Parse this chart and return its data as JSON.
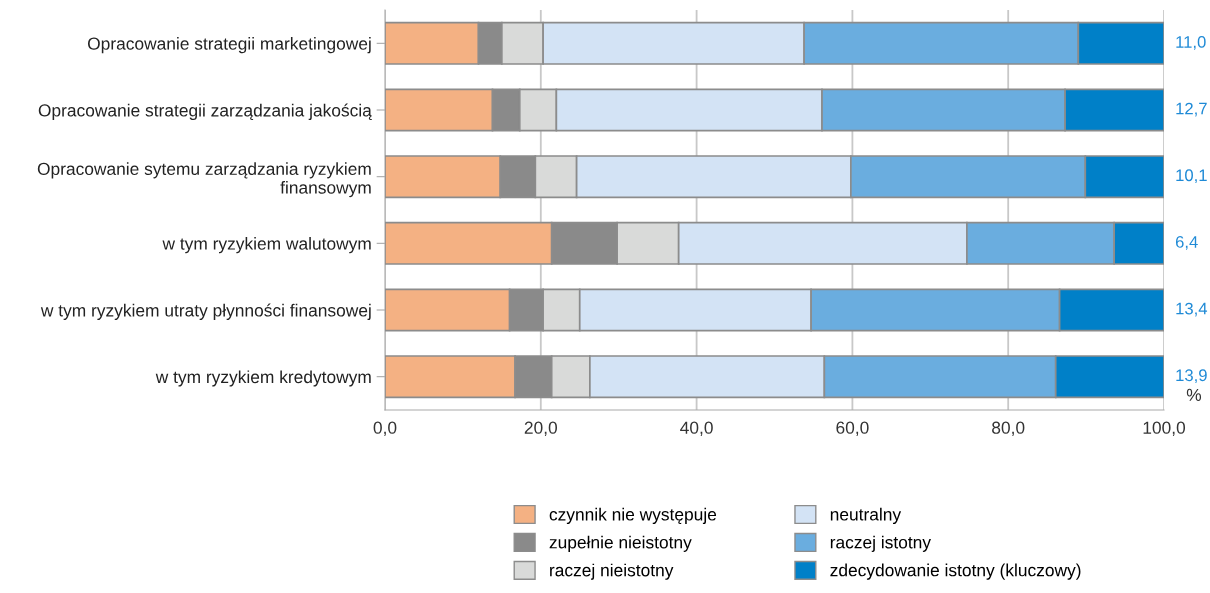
{
  "chart_data": {
    "type": "bar",
    "orientation": "horizontal",
    "stacked": true,
    "categories": [
      "Opracowanie strategii marketingowej",
      "Opracowanie strategii zarządzania jakością",
      "Opracowanie sytemu zarządzania ryzykiem finansowym",
      "w tym ryzykiem walutowym",
      "w tym ryzykiem utraty płynności finansowej",
      "w tym ryzykiem kredytowym"
    ],
    "series": [
      {
        "name": "czynnik nie występuje",
        "color": "#f4b183",
        "values": [
          12.0,
          13.8,
          14.8,
          21.4,
          16.0,
          16.7
        ]
      },
      {
        "name": "zupełnie nieistotny",
        "color": "#8a8a8a",
        "values": [
          3.0,
          3.5,
          4.5,
          8.4,
          4.3,
          4.7
        ]
      },
      {
        "name": "raczej nieistotny",
        "color": "#d9dad9",
        "values": [
          5.3,
          4.7,
          5.3,
          7.9,
          4.7,
          4.9
        ]
      },
      {
        "name": "neutralny",
        "color": "#d3e3f5",
        "values": [
          33.5,
          34.1,
          35.2,
          37.0,
          29.7,
          30.1
        ]
      },
      {
        "name": "raczej istotny",
        "color": "#6aaddf",
        "values": [
          35.2,
          31.2,
          30.1,
          18.9,
          31.9,
          29.7
        ]
      },
      {
        "name": "zdecydowanie istotny (kluczowy)",
        "color": "#0080c8",
        "values": [
          11.0,
          12.7,
          10.1,
          6.4,
          13.4,
          13.9
        ],
        "value_labels": [
          "11,0",
          "12,7",
          "10,1",
          "6,4",
          "13,4",
          "13,9"
        ]
      }
    ],
    "xlim": [
      0,
      100
    ],
    "xticks": [
      {
        "value": 0,
        "label": "0,0"
      },
      {
        "value": 20,
        "label": "20,0"
      },
      {
        "value": 40,
        "label": "40,0"
      },
      {
        "value": 60,
        "label": "60,0"
      },
      {
        "value": 80,
        "label": "80,0"
      },
      {
        "value": 100,
        "label": "100,0"
      }
    ],
    "xlabel": "%",
    "grid": "x",
    "legend": "bottom"
  }
}
